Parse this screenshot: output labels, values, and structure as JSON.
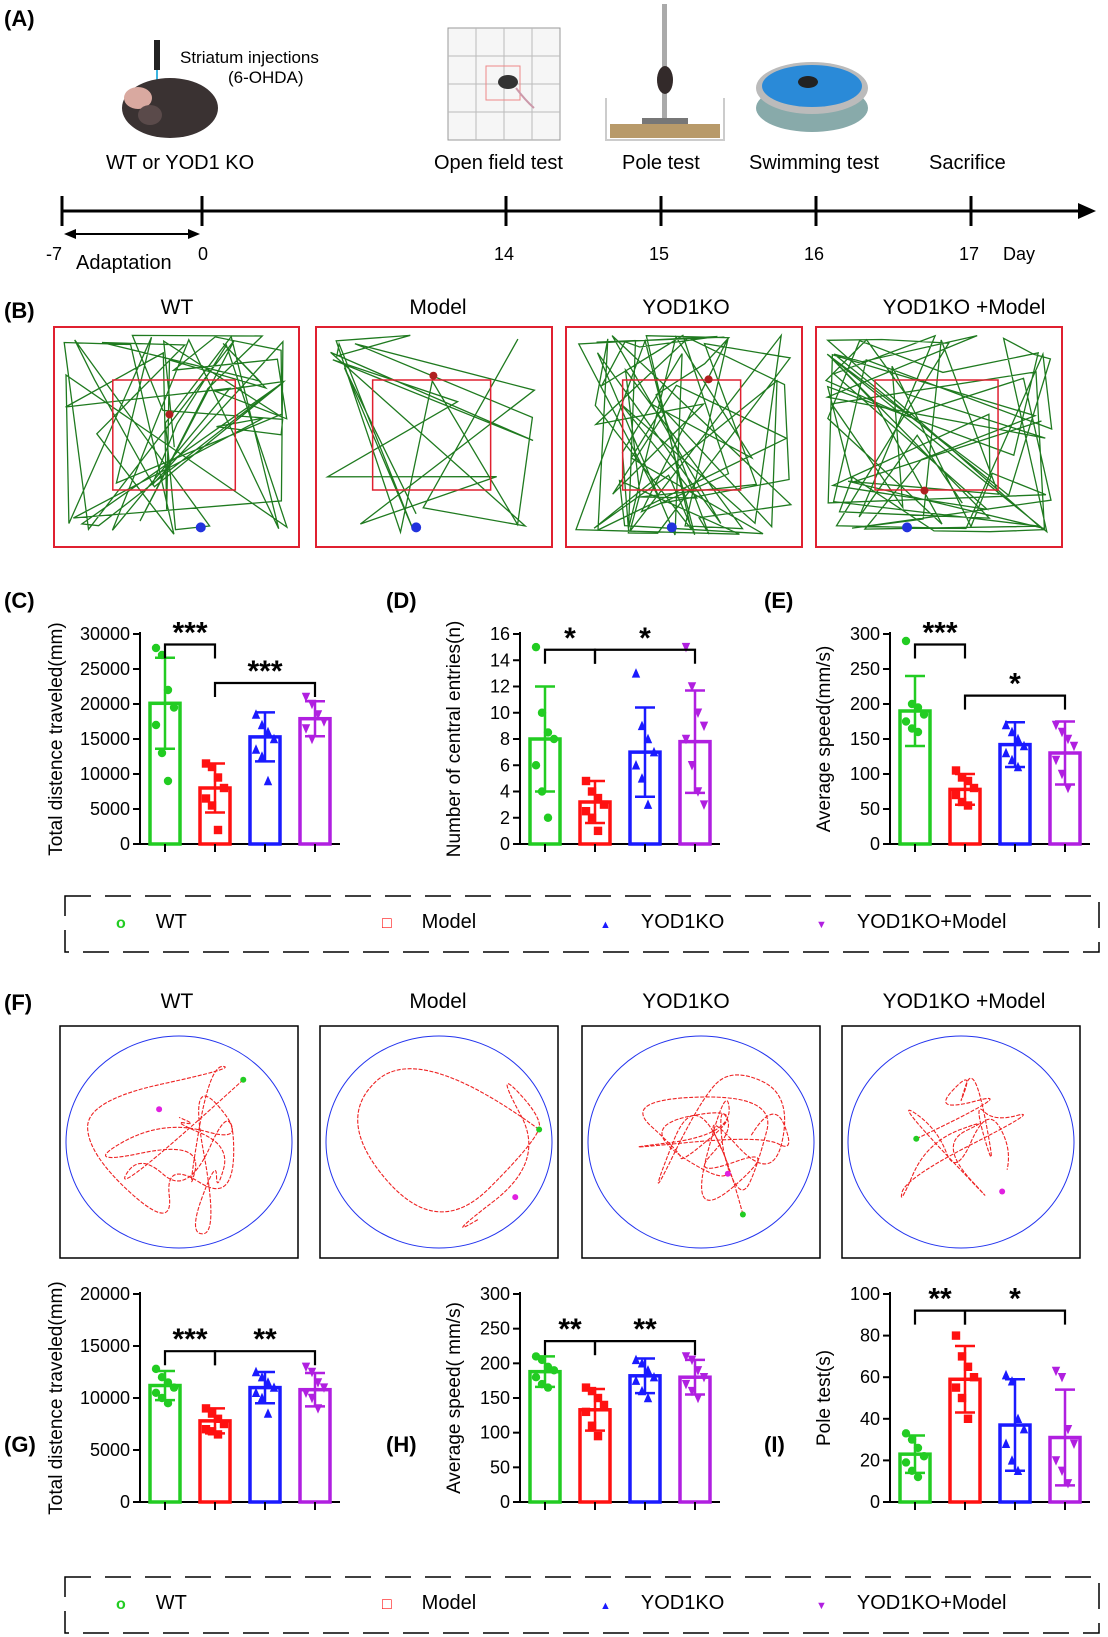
{
  "panels": {
    "A": "(A)",
    "B": "(B)",
    "C": "(C)",
    "D": "(D)",
    "E": "(E)",
    "F": "(F)",
    "G": "(G)",
    "H": "(H)",
    "I": "(I)"
  },
  "timeline": {
    "injection_line1": "Striatum injections",
    "injection_line2": "(6-OHDA)",
    "group_label": "WT or YOD1 KO",
    "events": [
      "Open field test",
      "Pole test",
      "Swimming test",
      "Sacrifice"
    ],
    "ticks": [
      "-7",
      "0",
      "14",
      "15",
      "16",
      "17"
    ],
    "unit": "Day",
    "adaptation": "Adaptation"
  },
  "open_field_titles": [
    "WT",
    "Model",
    "YOD1KO",
    "YOD1KO +Model"
  ],
  "swim_titles": [
    "WT",
    "Model",
    "YOD1KO",
    "YOD1KO +Model"
  ],
  "legend": [
    {
      "label": "WT",
      "marker": "o",
      "color": "#22cc22"
    },
    {
      "label": "Model",
      "marker": "□",
      "color": "#ff1111"
    },
    {
      "label": "YOD1KO",
      "marker": "▲",
      "color": "#1a1aff"
    },
    {
      "label": "YOD1KO+Model",
      "marker": "▼",
      "color": "#b01fe0"
    }
  ],
  "colors": {
    "wt": "#22cc22",
    "model": "#ff1111",
    "ko": "#1a1aff",
    "komodel": "#b01fe0",
    "track_of": "#1f7a1f",
    "track_swim": "#ee2222",
    "pool": "#2233ee",
    "arena": "#e02030"
  },
  "chart_data": [
    {
      "id": "C",
      "type": "bar",
      "ylabel": "Total distence traveled(mm)",
      "ylim": [
        0,
        30000
      ],
      "ticks": [
        0,
        5000,
        10000,
        15000,
        20000,
        25000,
        30000
      ],
      "categories": [
        "WT",
        "Model",
        "YOD1KO",
        "YOD1KO+Model"
      ],
      "values": [
        20100,
        8000,
        15300,
        17900
      ],
      "errors": [
        6500,
        3500,
        3500,
        2500
      ],
      "points": [
        [
          28000,
          27000,
          22000,
          19500,
          17000,
          13000,
          9000
        ],
        [
          11500,
          11000,
          9500,
          8000,
          6500,
          5500,
          2000
        ],
        [
          18500,
          17000,
          16000,
          15000,
          13500,
          12500,
          9000
        ],
        [
          21000,
          20000,
          18500,
          17500,
          16500,
          15000
        ]
      ],
      "sig": [
        {
          "from": 0,
          "to": 1,
          "text": "***",
          "level": 28500
        },
        {
          "from": 1,
          "to": 3,
          "text": "***",
          "level": 23000
        }
      ]
    },
    {
      "id": "D",
      "type": "bar",
      "ylabel": "Number of central entries(n)",
      "ylim": [
        0,
        16
      ],
      "ticks": [
        0,
        2,
        4,
        6,
        8,
        10,
        12,
        14,
        16
      ],
      "categories": [
        "WT",
        "Model",
        "YOD1KO",
        "YOD1KO+Model"
      ],
      "values": [
        8,
        3.2,
        7,
        7.8
      ],
      "errors": [
        4,
        1.6,
        3.4,
        3.9
      ],
      "points": [
        [
          15,
          10,
          8.5,
          8,
          6,
          4,
          2
        ],
        [
          4.8,
          4,
          3.5,
          3,
          2.5,
          2,
          1
        ],
        [
          13,
          9,
          8,
          7,
          6,
          5,
          3
        ],
        [
          15,
          12,
          10,
          9,
          8,
          6,
          4,
          3
        ]
      ],
      "sig": [
        {
          "from": 0,
          "to": 1,
          "text": "*",
          "level": 14.8
        },
        {
          "from": 1,
          "to": 3,
          "text": "*",
          "level": 14.8
        }
      ]
    },
    {
      "id": "E",
      "type": "bar",
      "ylabel": "Average speed(mm/s)",
      "ylim": [
        0,
        300
      ],
      "ticks": [
        0,
        50,
        100,
        150,
        200,
        250,
        300
      ],
      "categories": [
        "WT",
        "Model",
        "YOD1KO",
        "YOD1KO+Model"
      ],
      "values": [
        190,
        78,
        142,
        130
      ],
      "errors": [
        50,
        22,
        32,
        45
      ],
      "points": [
        [
          290,
          200,
          195,
          185,
          175,
          165,
          160
        ],
        [
          105,
          95,
          90,
          80,
          70,
          60,
          55
        ],
        [
          170,
          160,
          150,
          140,
          130,
          120,
          110
        ],
        [
          170,
          160,
          150,
          140,
          120,
          100,
          80
        ]
      ],
      "sig": [
        {
          "from": 0,
          "to": 1,
          "text": "***",
          "level": 285
        },
        {
          "from": 1,
          "to": 3,
          "text": "*",
          "level": 212
        }
      ]
    },
    {
      "id": "G",
      "type": "bar",
      "ylabel": "Total distence traveled(mm)",
      "ylim": [
        0,
        20000
      ],
      "ticks": [
        0,
        5000,
        10000,
        15000,
        20000
      ],
      "categories": [
        "WT",
        "Model",
        "YOD1KO",
        "YOD1KO+Model"
      ],
      "values": [
        11200,
        7800,
        11000,
        10800
      ],
      "errors": [
        1400,
        1200,
        1500,
        1600
      ],
      "points": [
        [
          12800,
          12000,
          11500,
          11000,
          10500,
          10000,
          9500
        ],
        [
          9000,
          8500,
          8000,
          7500,
          7000,
          6800,
          6500
        ],
        [
          12500,
          12000,
          11500,
          11000,
          10500,
          10000,
          8500
        ],
        [
          13000,
          12500,
          11500,
          11000,
          10500,
          10000,
          9000
        ]
      ],
      "sig": [
        {
          "from": 0,
          "to": 1,
          "text": "***",
          "level": 14500
        },
        {
          "from": 1,
          "to": 3,
          "text": "**",
          "level": 14500
        }
      ]
    },
    {
      "id": "H",
      "type": "bar",
      "ylabel": "Average speed( mm/s)",
      "ylim": [
        0,
        300
      ],
      "ticks": [
        0,
        50,
        100,
        150,
        200,
        250,
        300
      ],
      "categories": [
        "WT",
        "Model",
        "YOD1KO",
        "YOD1KO+Model"
      ],
      "values": [
        188,
        133,
        182,
        180
      ],
      "errors": [
        22,
        30,
        25,
        25
      ],
      "points": [
        [
          210,
          205,
          195,
          190,
          180,
          170,
          165
        ],
        [
          165,
          160,
          150,
          140,
          130,
          110,
          95
        ],
        [
          205,
          200,
          190,
          180,
          175,
          160,
          150
        ],
        [
          210,
          205,
          190,
          180,
          170,
          160,
          150
        ]
      ],
      "sig": [
        {
          "from": 0,
          "to": 1,
          "text": "**",
          "level": 232
        },
        {
          "from": 1,
          "to": 3,
          "text": "**",
          "level": 232
        }
      ]
    },
    {
      "id": "I",
      "type": "bar",
      "ylabel": "Pole test(s)",
      "ylim": [
        0,
        100
      ],
      "ticks": [
        0,
        20,
        40,
        60,
        80,
        100
      ],
      "categories": [
        "WT",
        "Model",
        "YOD1KO",
        "YOD1KO+Model"
      ],
      "values": [
        23,
        59,
        37,
        31
      ],
      "errors": [
        9,
        16,
        22,
        23
      ],
      "points": [
        [
          33,
          30,
          26,
          22,
          19,
          15,
          12
        ],
        [
          80,
          70,
          65,
          60,
          55,
          50,
          40
        ],
        [
          61,
          58,
          40,
          35,
          28,
          20,
          15
        ],
        [
          63,
          60,
          35,
          28,
          20,
          15,
          9
        ]
      ],
      "sig": [
        {
          "from": 0,
          "to": 1,
          "text": "**",
          "level": 92
        },
        {
          "from": 1,
          "to": 3,
          "text": "*",
          "level": 92
        }
      ]
    }
  ]
}
